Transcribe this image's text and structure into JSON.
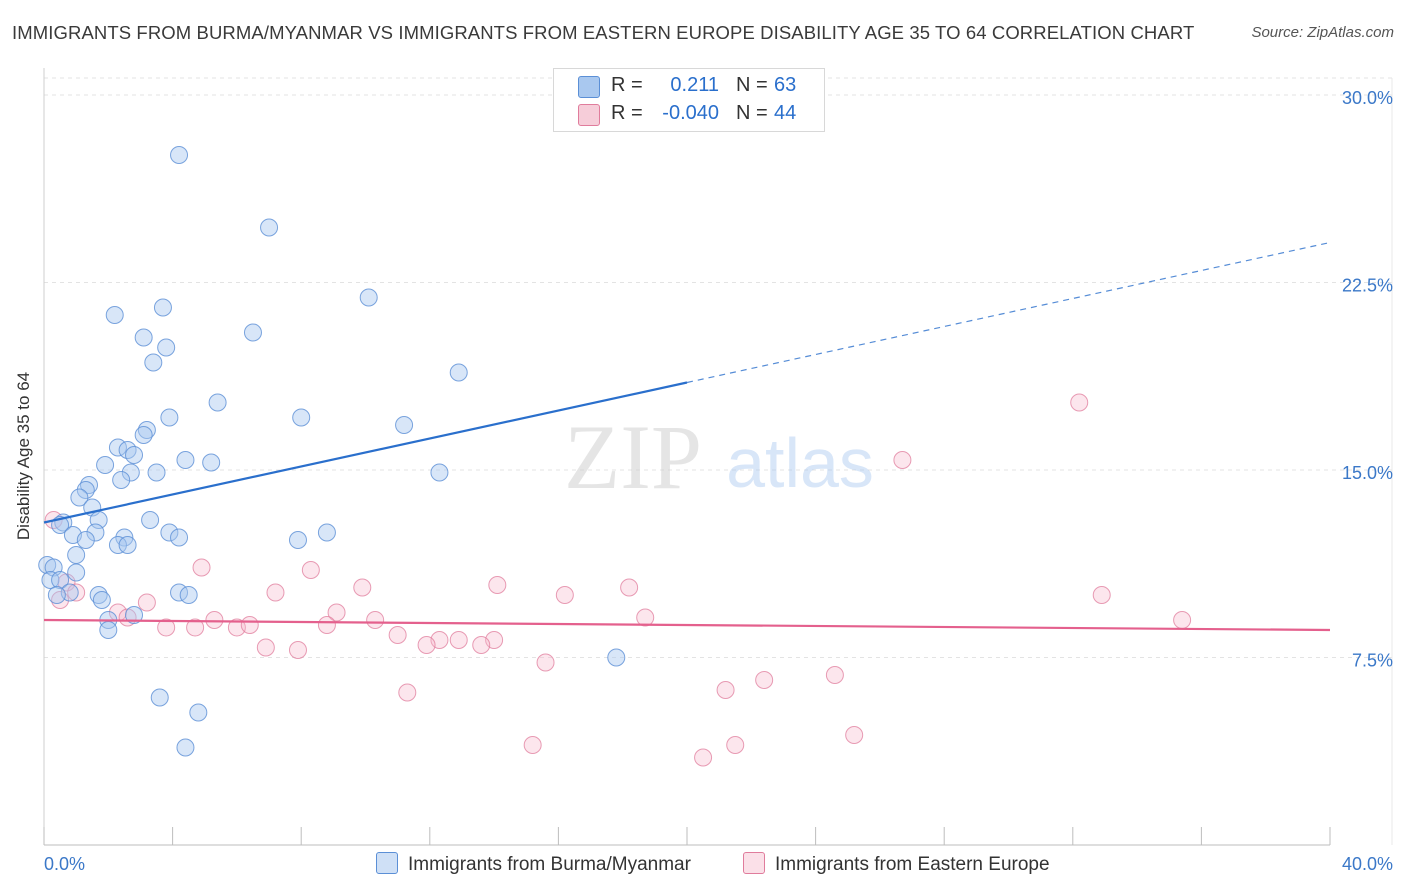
{
  "title": "IMMIGRANTS FROM BURMA/MYANMAR VS IMMIGRANTS FROM EASTERN EUROPE DISABILITY AGE 35 TO 64 CORRELATION CHART",
  "source": "Source: ZipAtlas.com",
  "watermark": {
    "zip": "ZIP",
    "atlas": "atlas"
  },
  "colors": {
    "blue_fill": "#a9c8ef",
    "blue_stroke": "#5b8fd6",
    "blue_line": "#2a6fcc",
    "pink_fill": "#f6b8cb",
    "pink_stroke": "#e07c9c",
    "pink_line": "#e4608d",
    "axis_text": "#3b78c8",
    "grid": "#e3e3e3"
  },
  "legend": {
    "rows": [
      {
        "label": "R =",
        "r": "0.211",
        "n_label": "N =",
        "n": "63"
      },
      {
        "label": "R =",
        "r": "-0.040",
        "n_label": "N =",
        "n": "44"
      }
    ]
  },
  "bottom_legend": {
    "series1": "Immigrants from Burma/Myanmar",
    "series2": "Immigrants from Eastern Europe"
  },
  "chart_data": {
    "type": "scatter",
    "title": "IMMIGRANTS FROM BURMA/MYANMAR VS IMMIGRANTS FROM EASTERN EUROPE DISABILITY AGE 35 TO 64 CORRELATION CHART",
    "xlabel": "",
    "ylabel": "Disability Age 35 to 64",
    "xlim": [
      0,
      40
    ],
    "ylim": [
      0,
      31
    ],
    "x_tick_labels": [
      "0.0%",
      "40.0%"
    ],
    "y_ticks": [
      7.5,
      15.0,
      22.5,
      30.0
    ],
    "y_tick_labels": [
      "7.5%",
      "15.0%",
      "22.5%",
      "30.0%"
    ],
    "series": [
      {
        "name": "Immigrants from Burma/Myanmar",
        "color": "blue",
        "trend": {
          "x0": 0.0,
          "y0": 12.9,
          "x1": 20.0,
          "y1": 18.5,
          "dashed_to_x": 40.0,
          "dashed_to_y": 24.1
        },
        "points": [
          [
            4.2,
            27.6
          ],
          [
            7.0,
            24.7
          ],
          [
            10.1,
            21.9
          ],
          [
            3.7,
            21.5
          ],
          [
            2.2,
            21.2
          ],
          [
            6.5,
            20.5
          ],
          [
            3.1,
            20.3
          ],
          [
            3.8,
            19.9
          ],
          [
            3.4,
            19.3
          ],
          [
            12.9,
            18.9
          ],
          [
            5.4,
            17.7
          ],
          [
            3.9,
            17.1
          ],
          [
            8.0,
            17.1
          ],
          [
            11.2,
            16.8
          ],
          [
            3.2,
            16.6
          ],
          [
            3.1,
            16.4
          ],
          [
            2.3,
            15.9
          ],
          [
            2.6,
            15.8
          ],
          [
            2.8,
            15.6
          ],
          [
            4.4,
            15.4
          ],
          [
            5.2,
            15.3
          ],
          [
            1.9,
            15.2
          ],
          [
            2.7,
            14.9
          ],
          [
            3.5,
            14.9
          ],
          [
            12.3,
            14.9
          ],
          [
            2.4,
            14.6
          ],
          [
            1.4,
            14.4
          ],
          [
            1.3,
            14.2
          ],
          [
            1.1,
            13.9
          ],
          [
            1.5,
            13.5
          ],
          [
            1.7,
            13.0
          ],
          [
            3.3,
            13.0
          ],
          [
            0.6,
            12.9
          ],
          [
            0.5,
            12.8
          ],
          [
            1.6,
            12.5
          ],
          [
            0.9,
            12.4
          ],
          [
            3.9,
            12.5
          ],
          [
            8.8,
            12.5
          ],
          [
            2.5,
            12.3
          ],
          [
            4.2,
            12.3
          ],
          [
            7.9,
            12.2
          ],
          [
            1.3,
            12.2
          ],
          [
            2.3,
            12.0
          ],
          [
            2.6,
            12.0
          ],
          [
            1.0,
            11.6
          ],
          [
            0.1,
            11.2
          ],
          [
            0.3,
            11.1
          ],
          [
            1.0,
            10.9
          ],
          [
            0.2,
            10.6
          ],
          [
            0.5,
            10.6
          ],
          [
            0.8,
            10.1
          ],
          [
            1.7,
            10.0
          ],
          [
            0.4,
            10.0
          ],
          [
            4.2,
            10.1
          ],
          [
            4.5,
            10.0
          ],
          [
            1.8,
            9.8
          ],
          [
            2.8,
            9.2
          ],
          [
            2.0,
            9.0
          ],
          [
            2.0,
            8.6
          ],
          [
            17.8,
            7.5
          ],
          [
            3.6,
            5.9
          ],
          [
            4.8,
            5.3
          ],
          [
            4.4,
            3.9
          ]
        ]
      },
      {
        "name": "Immigrants from Eastern Europe",
        "color": "pink",
        "trend": {
          "x0": 0.0,
          "y0": 9.0,
          "x1": 40.0,
          "y1": 8.6
        },
        "points": [
          [
            32.2,
            17.7
          ],
          [
            26.7,
            15.4
          ],
          [
            0.3,
            13.0
          ],
          [
            4.9,
            11.1
          ],
          [
            8.3,
            11.0
          ],
          [
            0.7,
            10.5
          ],
          [
            14.1,
            10.4
          ],
          [
            9.9,
            10.3
          ],
          [
            18.2,
            10.3
          ],
          [
            7.2,
            10.1
          ],
          [
            1.0,
            10.1
          ],
          [
            16.2,
            10.0
          ],
          [
            32.9,
            10.0
          ],
          [
            3.2,
            9.7
          ],
          [
            0.5,
            9.8
          ],
          [
            9.1,
            9.3
          ],
          [
            2.3,
            9.3
          ],
          [
            2.6,
            9.1
          ],
          [
            5.3,
            9.0
          ],
          [
            10.3,
            9.0
          ],
          [
            18.7,
            9.1
          ],
          [
            35.4,
            9.0
          ],
          [
            8.8,
            8.8
          ],
          [
            3.8,
            8.7
          ],
          [
            4.7,
            8.7
          ],
          [
            6.0,
            8.7
          ],
          [
            6.4,
            8.8
          ],
          [
            11.0,
            8.4
          ],
          [
            12.3,
            8.2
          ],
          [
            12.9,
            8.2
          ],
          [
            14.0,
            8.2
          ],
          [
            11.9,
            8.0
          ],
          [
            13.6,
            8.0
          ],
          [
            6.9,
            7.9
          ],
          [
            7.9,
            7.8
          ],
          [
            15.6,
            7.3
          ],
          [
            24.6,
            6.8
          ],
          [
            22.4,
            6.6
          ],
          [
            21.2,
            6.2
          ],
          [
            11.3,
            6.1
          ],
          [
            25.2,
            4.4
          ],
          [
            15.2,
            4.0
          ],
          [
            21.5,
            4.0
          ],
          [
            20.5,
            3.5
          ]
        ]
      }
    ]
  }
}
